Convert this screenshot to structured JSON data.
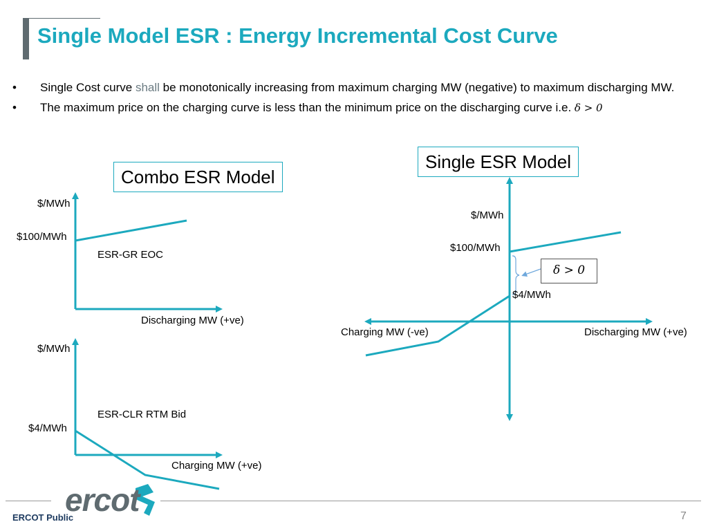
{
  "slide": {
    "title": "Single Model ESR : Energy Incremental Cost Curve",
    "page_number": "7",
    "footer_label": "ERCOT Public",
    "logo_text": "ercot"
  },
  "bullets": {
    "b1_pre": "Single Cost curve ",
    "b1_highlight": "shall",
    "b1_post": " be monotonically increasing from maximum charging MW (negative) to maximum discharging MW.",
    "b2_text": "The maximum price on the charging curve is less than the minimum price on the discharging curve i.e. ",
    "b2_math": "δ > 0",
    "bullet_char": "•"
  },
  "combo": {
    "title": "Combo ESR Model",
    "top_chart": {
      "y_axis_label": "$/MWh",
      "price_label": "$100/MWh",
      "curve_label": "ESR-GR EOC",
      "x_axis_label": "Discharging MW (+ve)"
    },
    "bottom_chart": {
      "y_axis_label": "$/MWh",
      "price_label": "$4/MWh",
      "curve_label": "ESR-CLR RTM Bid",
      "x_axis_label": "Charging MW (+ve)"
    }
  },
  "single": {
    "title": "Single ESR Model",
    "y_axis_label": "$/MWh",
    "price_high_label": "$100/MWh",
    "price_low_label": "$4/MWh",
    "delta_label": "δ > 0",
    "x_neg_label": "Charging MW (-ve)",
    "x_pos_label": "Discharging MW (+ve)"
  },
  "colors": {
    "accent": "#1ca9be",
    "title_bar": "#5f6b70",
    "bracket": "#6fa8dc"
  }
}
